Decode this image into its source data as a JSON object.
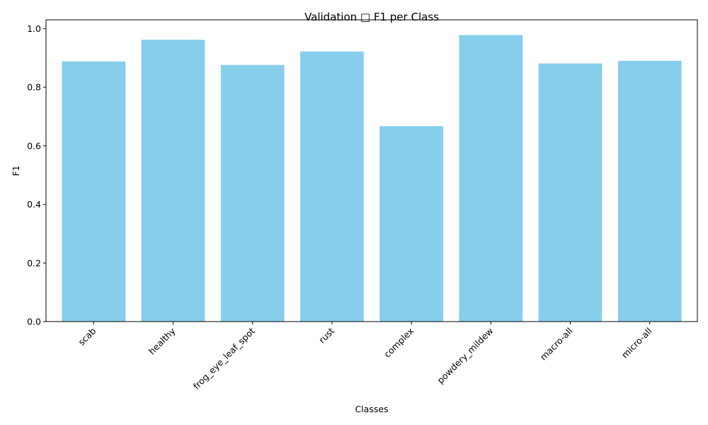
{
  "chart_data": {
    "type": "bar",
    "title": "Validation □ F1 per Class",
    "xlabel": "Classes",
    "ylabel": "F1",
    "categories": [
      "scab",
      "healthy",
      "frog_eye_leaf_spot",
      "rust",
      "complex",
      "powdery_mildew",
      "macro-all",
      "micro-all"
    ],
    "values": [
      0.888,
      0.962,
      0.876,
      0.922,
      0.667,
      0.978,
      0.881,
      0.89
    ],
    "ylim": [
      0,
      1.03
    ],
    "yticks": [
      "0.0",
      "0.2",
      "0.4",
      "0.6",
      "0.8",
      "1.0"
    ],
    "bar_color": "#87ceeb",
    "grid": false,
    "legend": "none"
  }
}
